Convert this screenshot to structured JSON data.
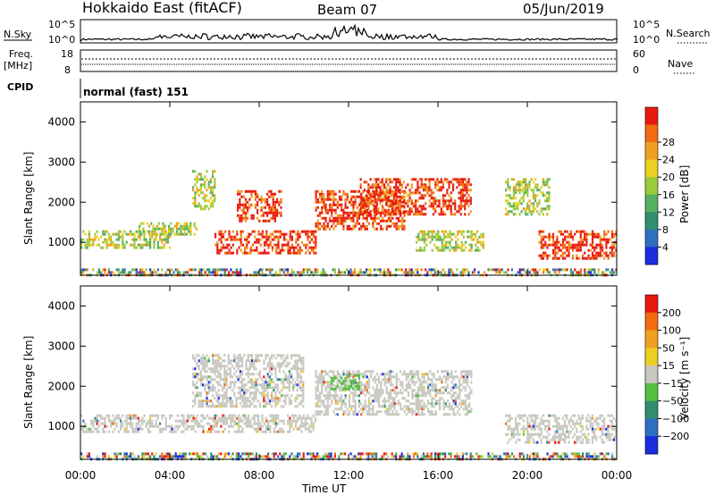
{
  "header": {
    "title": "Hokkaido East (fitACF)",
    "beam": "Beam 07",
    "date": "05/Jun/2019"
  },
  "status_panels": {
    "nsky_label": "N.Sky",
    "nsky_ticks": [
      "10^5",
      "10^0"
    ],
    "nsearch_label": "N.Search",
    "nsearch_ticks": [
      "10^5",
      "10^0"
    ],
    "freq_label_1": "Freq.",
    "freq_label_2": "[MHz]",
    "freq_ticks": [
      "18",
      "8"
    ],
    "nave_label": "Nave",
    "nave_ticks": [
      "60",
      "0"
    ],
    "cpid_label": "CPID",
    "cpid_value": "normal (fast) 151"
  },
  "chart_data": [
    {
      "type": "heatmap",
      "name": "power-panel",
      "ylabel": "Slant Range [km]",
      "xlim": [
        "00:00",
        "24:00"
      ],
      "ylim": [
        180,
        4500
      ],
      "yticks": [
        "1000",
        "2000",
        "3000",
        "4000"
      ],
      "colorbar_label": "Power [dB]",
      "colorbar_ticks": [
        "4",
        "8",
        "12",
        "16",
        "20",
        "24",
        "28"
      ],
      "colorbar_colors": [
        "#1a2de0",
        "#2f6fbf",
        "#2f8f6f",
        "#55b060",
        "#9acb3a",
        "#ead020",
        "#f0a020",
        "#f26b10",
        "#e81a10"
      ],
      "regions": [
        {
          "t0": 0.0,
          "t1": 4.0,
          "r0": 850,
          "r1": 1300,
          "level": "mid"
        },
        {
          "t0": 2.6,
          "t1": 5.2,
          "r0": 1200,
          "r1": 1500,
          "level": "mid"
        },
        {
          "t0": 5.0,
          "t1": 6.0,
          "r0": 1800,
          "r1": 2800,
          "level": "mid"
        },
        {
          "t0": 6.0,
          "t1": 10.5,
          "r0": 700,
          "r1": 1300,
          "level": "high"
        },
        {
          "t0": 7.0,
          "t1": 9.0,
          "r0": 1500,
          "r1": 2300,
          "level": "high"
        },
        {
          "t0": 10.5,
          "t1": 14.5,
          "r0": 1300,
          "r1": 2300,
          "level": "high"
        },
        {
          "t0": 12.5,
          "t1": 17.5,
          "r0": 1700,
          "r1": 2600,
          "level": "high"
        },
        {
          "t0": 15.0,
          "t1": 18.0,
          "r0": 800,
          "r1": 1300,
          "level": "mid"
        },
        {
          "t0": 19.0,
          "t1": 21.0,
          "r0": 1700,
          "r1": 2600,
          "level": "mid"
        },
        {
          "t0": 20.5,
          "t1": 24.0,
          "r0": 600,
          "r1": 1300,
          "level": "high"
        },
        {
          "t0": 0.0,
          "t1": 24.0,
          "r0": 180,
          "r1": 350,
          "level": "mixed"
        }
      ]
    },
    {
      "type": "heatmap",
      "name": "velocity-panel",
      "ylabel": "Slant Range [km]",
      "xlabel": "Time UT",
      "xticks": [
        "00:00",
        "04:00",
        "08:00",
        "12:00",
        "16:00",
        "20:00",
        "00:00"
      ],
      "xlim": [
        "00:00",
        "24:00"
      ],
      "ylim": [
        180,
        4500
      ],
      "yticks": [
        "1000",
        "2000",
        "3000",
        "4000"
      ],
      "colorbar_label": "Velocity [m s⁻¹]",
      "colorbar_ticks": [
        "200",
        "100",
        "50",
        "15",
        "−15",
        "−50",
        "−100",
        "−200"
      ],
      "colorbar_colors": [
        "#1a2de0",
        "#2f6fbf",
        "#2f8f6f",
        "#55c040",
        "#c8c8c0",
        "#ead020",
        "#f0a020",
        "#f26b10",
        "#e81a10"
      ],
      "regions": [
        {
          "t0": 0.0,
          "t1": 24.0,
          "r0": 180,
          "r1": 350,
          "level": "mixed"
        },
        {
          "t0": 0.0,
          "t1": 10.5,
          "r0": 850,
          "r1": 1300,
          "level": "gray"
        },
        {
          "t0": 5.0,
          "t1": 10.0,
          "r0": 1500,
          "r1": 2800,
          "level": "gray"
        },
        {
          "t0": 10.5,
          "t1": 17.5,
          "r0": 1300,
          "r1": 2400,
          "level": "gray"
        },
        {
          "t0": 11.2,
          "t1": 12.5,
          "r0": 1900,
          "r1": 2300,
          "level": "green"
        },
        {
          "t0": 19.0,
          "t1": 24.0,
          "r0": 600,
          "r1": 1300,
          "level": "gray"
        }
      ]
    }
  ]
}
